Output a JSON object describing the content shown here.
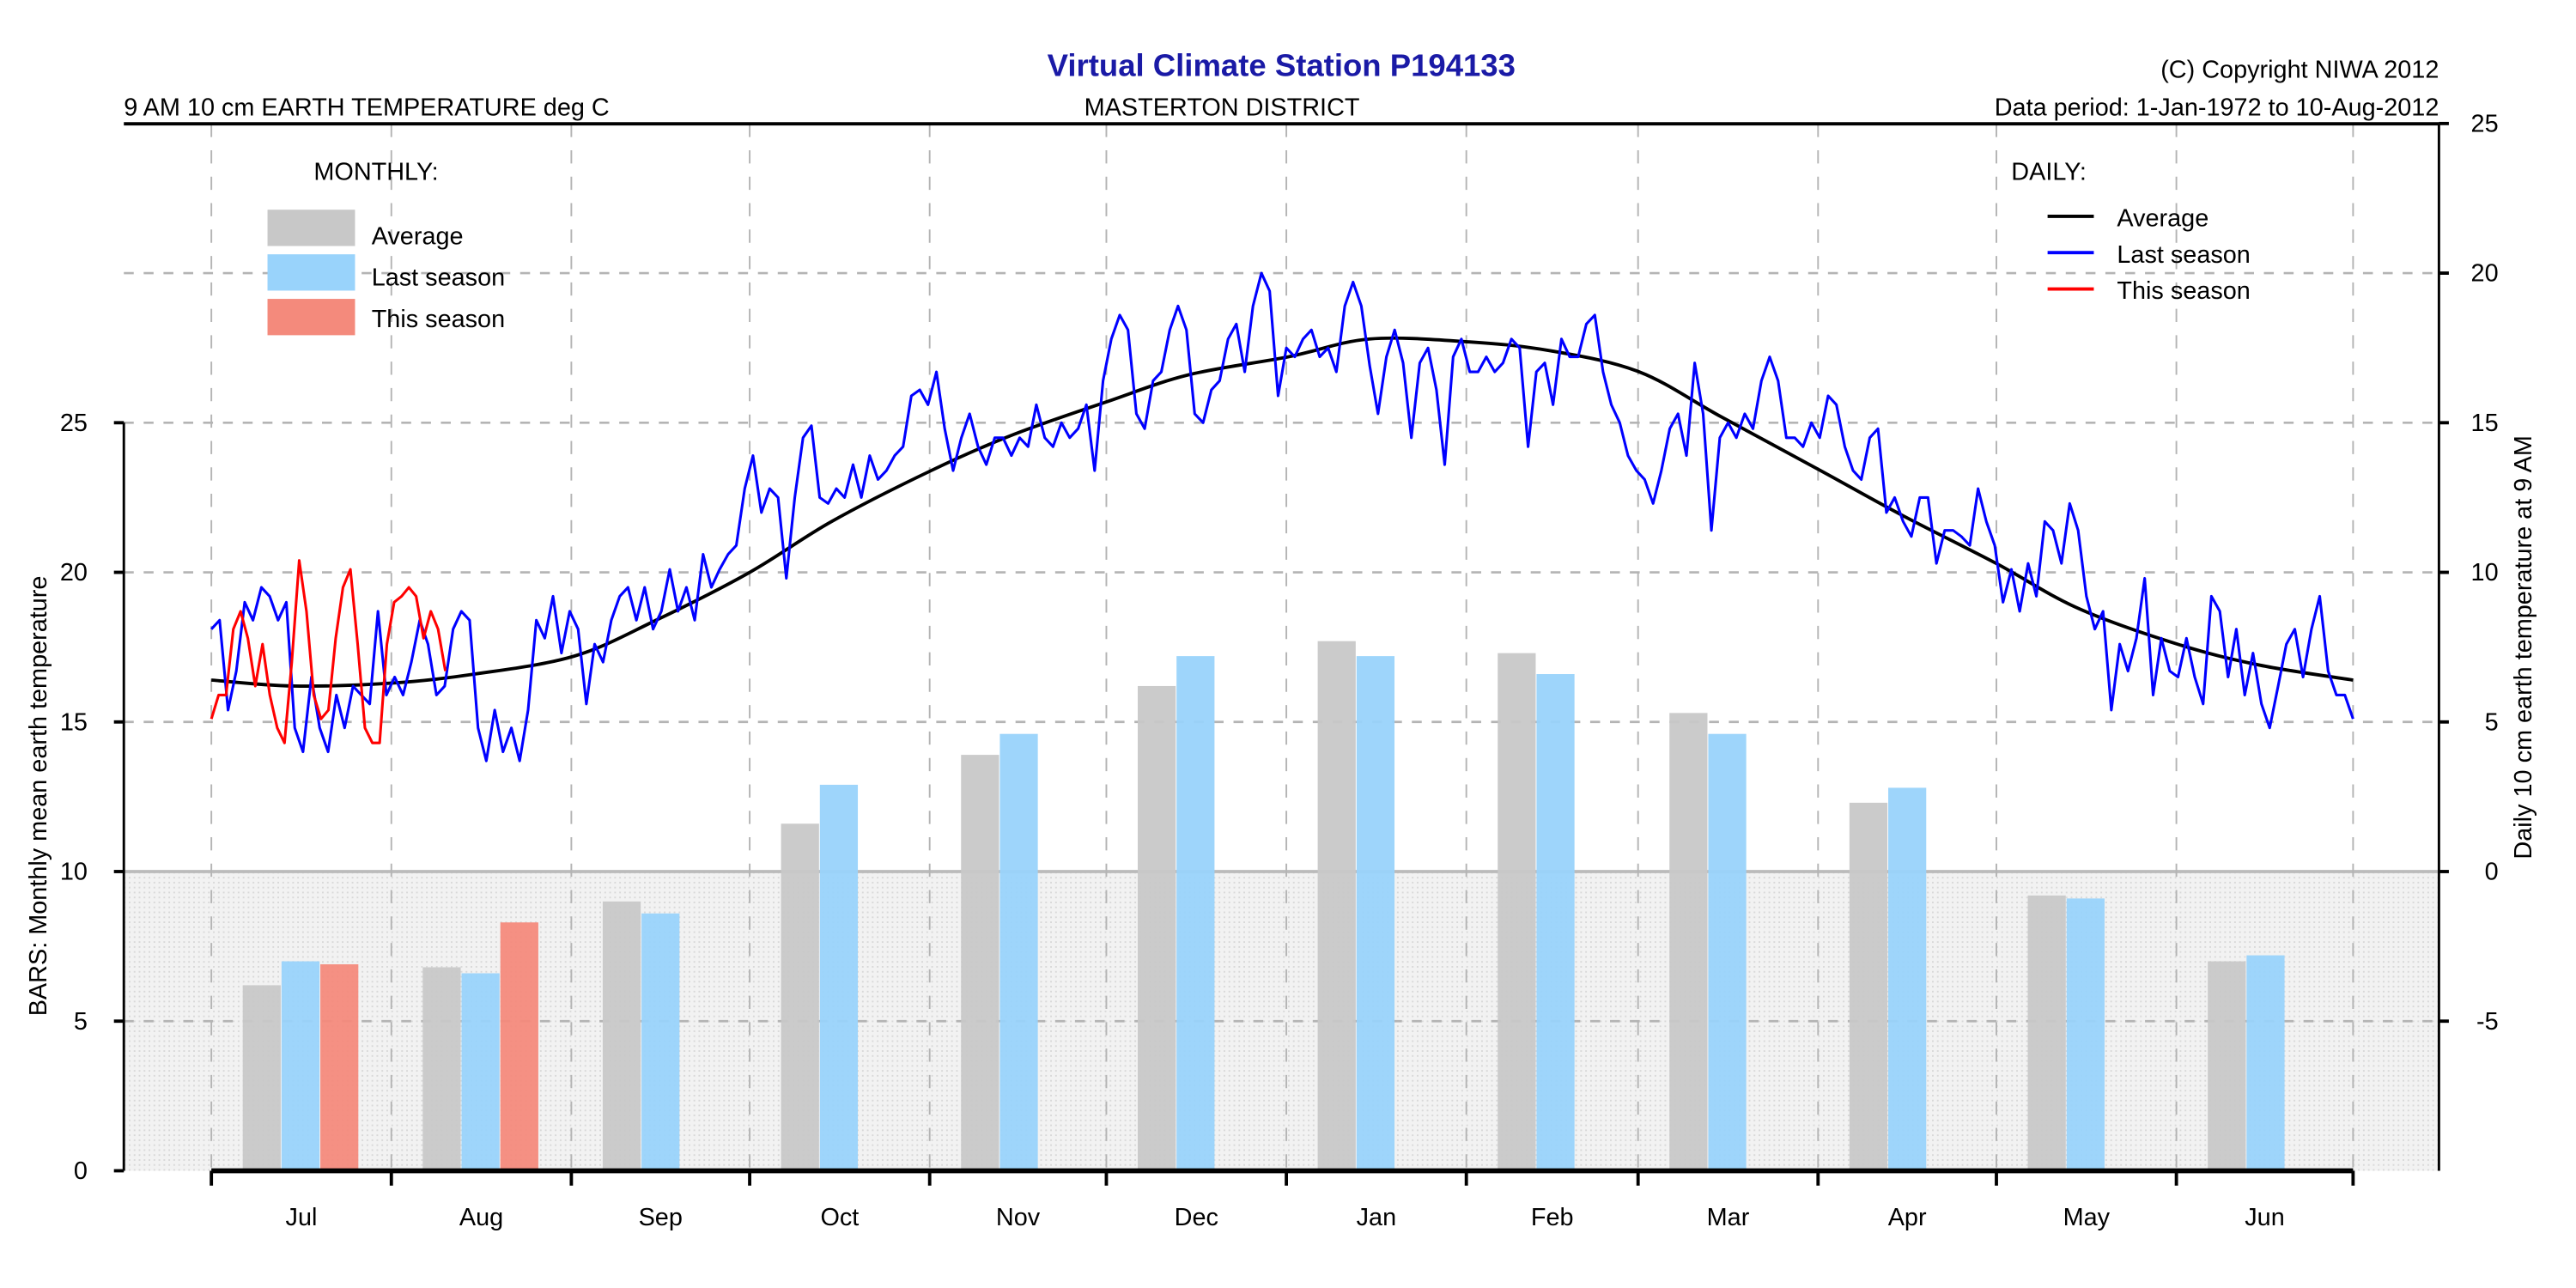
{
  "header": {
    "title": "Virtual Climate Station P194133",
    "copyright": "(C) Copyright NIWA  2012",
    "variable": "9 AM 10 cm EARTH TEMPERATURE deg C",
    "district": "MASTERTON DISTRICT",
    "data_period": "Data period:  1-Jan-1972  to  10-Aug-2012"
  },
  "colors": {
    "title": "#1a1aa6",
    "bar_average": "#c8c8c8",
    "bar_last_season": "#99d3fb",
    "bar_this_season": "#f48a7c",
    "line_average": "#000000",
    "line_last_season": "#0000ff",
    "line_this_season": "#ff0000",
    "shade": "#ececec",
    "grid": "#b4b4b4"
  },
  "chart_data": {
    "type": "bar+line",
    "categories": [
      "Jul",
      "Aug",
      "Sep",
      "Oct",
      "Nov",
      "Dec",
      "Jan",
      "Feb",
      "Mar",
      "Apr",
      "May",
      "Jun"
    ],
    "left_axis": {
      "label": "BARS: Monthly mean earth temperature",
      "ylim": [
        0,
        25
      ],
      "ticks": [
        "0",
        "5",
        "10",
        "15",
        "20",
        "25"
      ]
    },
    "right_axis": {
      "label": "Daily 10 cm earth temperature at 9 AM",
      "ylim": [
        -10,
        25
      ],
      "ticks": [
        "-5",
        "0",
        "5",
        "10",
        "15",
        "20",
        "25"
      ]
    },
    "grid": true,
    "monthly_legend": {
      "title": "MONTHLY:",
      "placement": "top-left",
      "items": [
        "Average",
        "Last season",
        "This season"
      ]
    },
    "daily_legend": {
      "title": "DAILY:",
      "placement": "top-right",
      "items": [
        "Average",
        "Last season",
        "This season"
      ]
    },
    "bars": [
      {
        "name": "Average",
        "values": [
          6.2,
          6.8,
          9.0,
          11.6,
          13.9,
          16.2,
          17.7,
          17.3,
          15.3,
          12.3,
          9.2,
          7.0
        ]
      },
      {
        "name": "Last season",
        "values": [
          7.0,
          6.6,
          8.6,
          12.9,
          14.6,
          17.2,
          17.2,
          16.6,
          14.6,
          12.8,
          9.1,
          7.2
        ]
      },
      {
        "name": "This season",
        "values": [
          6.9,
          8.3,
          null,
          null,
          null,
          null,
          null,
          null,
          null,
          null,
          null,
          null
        ]
      }
    ],
    "daily": [
      {
        "name": "Average",
        "x": [
          "1-Jul",
          "15-Jul",
          "1-Aug",
          "15-Aug",
          "1-Sep",
          "15-Sep",
          "1-Oct",
          "15-Oct",
          "1-Nov",
          "15-Nov",
          "1-Dec",
          "15-Dec",
          "1-Jan",
          "15-Jan",
          "1-Feb",
          "15-Feb",
          "1-Mar",
          "15-Mar",
          "1-Apr",
          "15-Apr",
          "1-May",
          "15-May",
          "1-Jun",
          "15-Jun",
          "30-Jun"
        ],
        "values": [
          6.4,
          6.2,
          6.3,
          6.6,
          7.2,
          8.4,
          10.0,
          11.7,
          13.4,
          14.6,
          15.7,
          16.6,
          17.2,
          17.8,
          17.7,
          17.4,
          16.7,
          15.2,
          13.4,
          11.9,
          10.3,
          8.8,
          7.6,
          6.9,
          6.4
        ]
      },
      {
        "name": "Last season",
        "start": "1-Jul",
        "end": "30-Jun",
        "values": [
          8.1,
          8.4,
          5.4,
          6.7,
          9.0,
          8.4,
          9.5,
          9.2,
          8.4,
          9.0,
          4.8,
          4.0,
          6.5,
          4.8,
          4.0,
          5.9,
          4.8,
          6.2,
          5.9,
          5.6,
          8.7,
          5.9,
          6.5,
          5.9,
          7.0,
          8.4,
          7.6,
          5.9,
          6.2,
          8.1,
          8.7,
          8.4,
          4.8,
          3.7,
          5.4,
          4.0,
          4.8,
          3.7,
          5.4,
          8.4,
          7.8,
          9.2,
          7.3,
          8.7,
          8.1,
          5.6,
          7.6,
          7.0,
          8.4,
          9.2,
          9.5,
          8.4,
          9.5,
          8.1,
          8.7,
          10.1,
          8.7,
          9.5,
          8.4,
          10.6,
          9.5,
          10.1,
          10.6,
          10.9,
          12.8,
          13.9,
          12.0,
          12.8,
          12.5,
          9.8,
          12.5,
          14.5,
          14.9,
          12.5,
          12.3,
          12.8,
          12.5,
          13.6,
          12.5,
          13.9,
          13.1,
          13.4,
          13.9,
          14.2,
          15.9,
          16.1,
          15.6,
          16.7,
          14.8,
          13.4,
          14.5,
          15.3,
          14.2,
          13.6,
          14.5,
          14.5,
          13.9,
          14.5,
          14.2,
          15.6,
          14.5,
          14.2,
          15.0,
          14.5,
          14.8,
          15.6,
          13.4,
          16.4,
          17.8,
          18.6,
          18.1,
          15.3,
          14.8,
          16.4,
          16.7,
          18.1,
          18.9,
          18.1,
          15.3,
          15.0,
          16.1,
          16.4,
          17.8,
          18.3,
          16.7,
          18.9,
          20.0,
          19.4,
          15.9,
          17.5,
          17.2,
          17.8,
          18.1,
          17.2,
          17.5,
          16.7,
          18.9,
          19.7,
          18.9,
          16.9,
          15.3,
          17.2,
          18.1,
          17.0,
          14.5,
          17.0,
          17.5,
          16.1,
          13.6,
          17.2,
          17.8,
          16.7,
          16.7,
          17.2,
          16.7,
          17.0,
          17.8,
          17.5,
          14.2,
          16.7,
          17.0,
          15.6,
          17.8,
          17.2,
          17.2,
          18.3,
          18.6,
          16.7,
          15.6,
          15.0,
          13.9,
          13.4,
          13.1,
          12.3,
          13.4,
          14.8,
          15.3,
          13.9,
          17.0,
          15.3,
          11.4,
          14.5,
          15.0,
          14.5,
          15.3,
          14.8,
          16.4,
          17.2,
          16.4,
          14.5,
          14.5,
          14.2,
          15.0,
          14.5,
          15.9,
          15.6,
          14.2,
          13.4,
          13.1,
          14.5,
          14.8,
          12.0,
          12.5,
          11.7,
          11.2,
          12.5,
          12.5,
          10.3,
          11.4,
          11.4,
          11.2,
          10.9,
          12.8,
          11.7,
          10.9,
          9.0,
          10.1,
          8.7,
          10.3,
          9.2,
          11.7,
          11.4,
          10.3,
          12.3,
          11.4,
          9.2,
          8.1,
          8.7,
          5.4,
          7.6,
          6.7,
          7.8,
          9.8,
          5.9,
          7.8,
          6.7,
          6.5,
          7.8,
          6.5,
          5.6,
          9.2,
          8.7,
          6.5,
          8.1,
          5.9,
          7.3,
          5.6,
          4.8,
          6.2,
          7.6,
          8.1,
          6.5,
          8.1,
          9.2,
          6.7,
          5.9,
          5.9,
          5.1
        ]
      },
      {
        "name": "This season",
        "start": "1-Jul",
        "end": "10-Aug",
        "values": [
          5.1,
          5.9,
          5.9,
          8.1,
          8.7,
          7.8,
          6.2,
          7.6,
          5.9,
          4.8,
          4.3,
          7.0,
          10.4,
          8.7,
          5.9,
          5.1,
          5.4,
          7.8,
          9.5,
          10.1,
          7.6,
          4.8,
          4.3,
          4.3,
          7.6,
          9.0,
          9.2,
          9.5,
          9.2,
          7.8,
          8.7,
          8.1,
          6.7
        ]
      }
    ]
  }
}
